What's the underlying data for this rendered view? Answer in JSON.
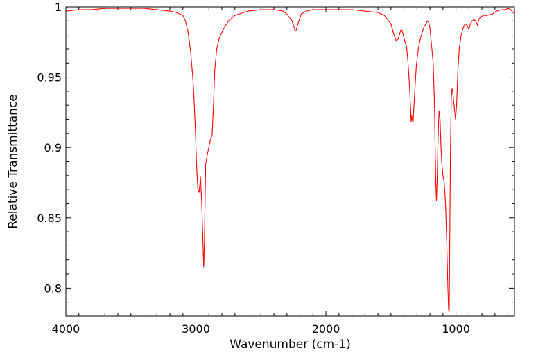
{
  "chart_data": {
    "type": "line",
    "title": "",
    "xlabel": "Wavenumber (cm-1)",
    "ylabel": "Relative Transmittance",
    "xlim": [
      4000,
      550
    ],
    "ylim": [
      0.78,
      1.0
    ],
    "x_reversed": true,
    "grid": false,
    "legend": "none",
    "x_ticks": [
      {
        "value": 4000,
        "label": "4000"
      },
      {
        "value": 3000,
        "label": "3000"
      },
      {
        "value": 2000,
        "label": "2000"
      },
      {
        "value": 1000,
        "label": "1000"
      }
    ],
    "y_ticks": [
      {
        "value": 1.0,
        "label": "1"
      },
      {
        "value": 0.95,
        "label": "0.95"
      },
      {
        "value": 0.9,
        "label": "0.9"
      },
      {
        "value": 0.85,
        "label": "0.85"
      },
      {
        "value": 0.8,
        "label": "0.8"
      }
    ],
    "series": [
      {
        "color": "#ff0000",
        "points": [
          [
            4000,
            0.997
          ],
          [
            3900,
            0.998
          ],
          [
            3800,
            0.998
          ],
          [
            3700,
            0.999
          ],
          [
            3600,
            0.999
          ],
          [
            3500,
            0.999
          ],
          [
            3400,
            0.999
          ],
          [
            3300,
            0.998
          ],
          [
            3200,
            0.997
          ],
          [
            3150,
            0.996
          ],
          [
            3100,
            0.994
          ],
          [
            3080,
            0.99
          ],
          [
            3060,
            0.982
          ],
          [
            3040,
            0.968
          ],
          [
            3020,
            0.945
          ],
          [
            3005,
            0.915
          ],
          [
            2995,
            0.888
          ],
          [
            2985,
            0.87
          ],
          [
            2975,
            0.868
          ],
          [
            2965,
            0.879
          ],
          [
            2955,
            0.86
          ],
          [
            2945,
            0.83
          ],
          [
            2940,
            0.815
          ],
          [
            2935,
            0.83
          ],
          [
            2925,
            0.888
          ],
          [
            2910,
            0.896
          ],
          [
            2890,
            0.905
          ],
          [
            2875,
            0.909
          ],
          [
            2865,
            0.93
          ],
          [
            2855,
            0.955
          ],
          [
            2840,
            0.97
          ],
          [
            2820,
            0.978
          ],
          [
            2790,
            0.984
          ],
          [
            2750,
            0.99
          ],
          [
            2700,
            0.994
          ],
          [
            2600,
            0.997
          ],
          [
            2500,
            0.998
          ],
          [
            2400,
            0.998
          ],
          [
            2330,
            0.997
          ],
          [
            2300,
            0.995
          ],
          [
            2260,
            0.99
          ],
          [
            2240,
            0.984
          ],
          [
            2230,
            0.983
          ],
          [
            2215,
            0.988
          ],
          [
            2190,
            0.995
          ],
          [
            2150,
            0.997
          ],
          [
            2100,
            0.998
          ],
          [
            2000,
            0.998
          ],
          [
            1900,
            0.998
          ],
          [
            1800,
            0.998
          ],
          [
            1700,
            0.997
          ],
          [
            1600,
            0.996
          ],
          [
            1550,
            0.994
          ],
          [
            1500,
            0.988
          ],
          [
            1480,
            0.981
          ],
          [
            1460,
            0.976
          ],
          [
            1445,
            0.977
          ],
          [
            1430,
            0.982
          ],
          [
            1420,
            0.984
          ],
          [
            1410,
            0.982
          ],
          [
            1395,
            0.976
          ],
          [
            1380,
            0.972
          ],
          [
            1370,
            0.962
          ],
          [
            1360,
            0.948
          ],
          [
            1350,
            0.93
          ],
          [
            1345,
            0.918
          ],
          [
            1340,
            0.923
          ],
          [
            1335,
            0.919
          ],
          [
            1330,
            0.918
          ],
          [
            1320,
            0.935
          ],
          [
            1305,
            0.958
          ],
          [
            1290,
            0.97
          ],
          [
            1275,
            0.977
          ],
          [
            1260,
            0.982
          ],
          [
            1245,
            0.986
          ],
          [
            1230,
            0.988
          ],
          [
            1220,
            0.99
          ],
          [
            1210,
            0.989
          ],
          [
            1200,
            0.985
          ],
          [
            1190,
            0.975
          ],
          [
            1175,
            0.96
          ],
          [
            1165,
            0.93
          ],
          [
            1160,
            0.9
          ],
          [
            1155,
            0.875
          ],
          [
            1150,
            0.862
          ],
          [
            1145,
            0.876
          ],
          [
            1138,
            0.905
          ],
          [
            1130,
            0.926
          ],
          [
            1122,
            0.92
          ],
          [
            1115,
            0.9
          ],
          [
            1108,
            0.888
          ],
          [
            1100,
            0.88
          ],
          [
            1090,
            0.875
          ],
          [
            1080,
            0.86
          ],
          [
            1070,
            0.83
          ],
          [
            1062,
            0.8
          ],
          [
            1057,
            0.785
          ],
          [
            1052,
            0.783
          ],
          [
            1048,
            0.83
          ],
          [
            1042,
            0.9
          ],
          [
            1036,
            0.935
          ],
          [
            1030,
            0.942
          ],
          [
            1025,
            0.94
          ],
          [
            1018,
            0.933
          ],
          [
            1010,
            0.926
          ],
          [
            1003,
            0.92
          ],
          [
            995,
            0.93
          ],
          [
            985,
            0.955
          ],
          [
            975,
            0.97
          ],
          [
            960,
            0.98
          ],
          [
            945,
            0.985
          ],
          [
            930,
            0.988
          ],
          [
            915,
            0.987
          ],
          [
            900,
            0.984
          ],
          [
            890,
            0.988
          ],
          [
            875,
            0.99
          ],
          [
            860,
            0.991
          ],
          [
            848,
            0.99
          ],
          [
            835,
            0.987
          ],
          [
            825,
            0.991
          ],
          [
            810,
            0.993
          ],
          [
            790,
            0.994
          ],
          [
            760,
            0.994
          ],
          [
            720,
            0.995
          ],
          [
            690,
            0.997
          ],
          [
            650,
            0.998
          ],
          [
            620,
            0.998
          ],
          [
            600,
            0.999
          ],
          [
            580,
            0.998
          ],
          [
            560,
            0.996
          ],
          [
            550,
            0.995
          ]
        ]
      }
    ]
  }
}
